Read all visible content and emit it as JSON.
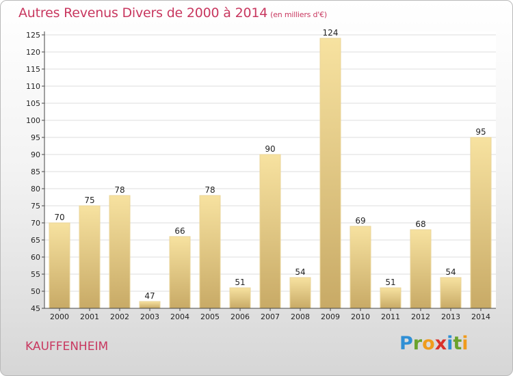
{
  "title": "Autres Revenus Divers de 2000 à 2014",
  "subtitle": "(en milliers d'€)",
  "commune": "KAUFFENHEIM",
  "logo": {
    "letters": [
      "P",
      "r",
      "o",
      "x",
      "i",
      "t",
      "i"
    ],
    "colors": [
      "#2f8fd5",
      "#6aa22c",
      "#f09b1c",
      "#d9312b",
      "#2f8fd5",
      "#6aa22c",
      "#f09b1c"
    ]
  },
  "chart_data": {
    "type": "bar",
    "categories": [
      "2000",
      "2001",
      "2002",
      "2003",
      "2004",
      "2005",
      "2006",
      "2007",
      "2008",
      "2009",
      "2010",
      "2011",
      "2012",
      "2013",
      "2014"
    ],
    "values": [
      70,
      75,
      78,
      47,
      66,
      78,
      51,
      90,
      54,
      124,
      69,
      51,
      68,
      54,
      95
    ],
    "ylim": [
      45,
      125
    ],
    "yticks": [
      45,
      50,
      55,
      60,
      65,
      70,
      75,
      80,
      85,
      90,
      95,
      100,
      105,
      110,
      115,
      120,
      125
    ],
    "grid": true,
    "colors": {
      "bar_light": "#f7e2a0",
      "bar_dark": "#c8aa66",
      "grid": "#dddddd",
      "axis": "#444444",
      "text": "#222222"
    }
  }
}
